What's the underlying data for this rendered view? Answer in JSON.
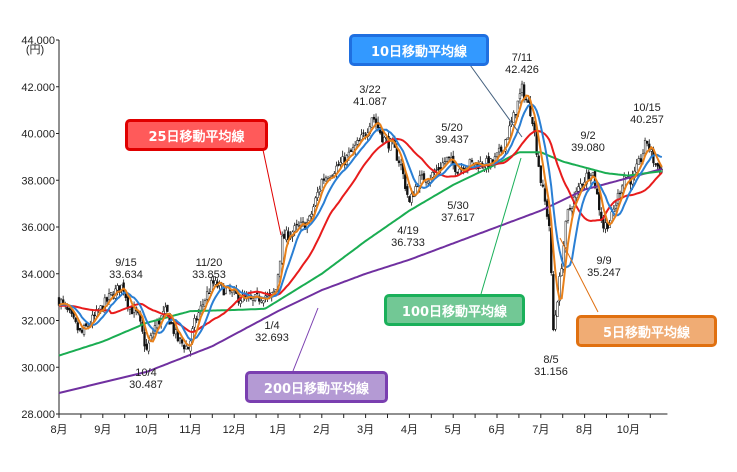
{
  "chart_data": {
    "type": "line",
    "subtype": "candlestick with moving averages",
    "yunit": "(円)",
    "ylim": [
      28000,
      44000
    ],
    "yticks": [
      {
        "value": 28000,
        "label": "28.000"
      },
      {
        "value": 30000,
        "label": "30.000"
      },
      {
        "value": 32000,
        "label": "32.000"
      },
      {
        "value": 34000,
        "label": "34.000"
      },
      {
        "value": 36000,
        "label": "36.000"
      },
      {
        "value": 38000,
        "label": "38.000"
      },
      {
        "value": 40000,
        "label": "40.000"
      },
      {
        "value": 42000,
        "label": "42.000"
      },
      {
        "value": 44000,
        "label": "44.000"
      }
    ],
    "xticks": [
      "8月",
      "9月",
      "10月",
      "11月",
      "12月",
      "1月",
      "2月",
      "3月",
      "4月",
      "5月",
      "6月",
      "7月",
      "8月",
      "10月"
    ],
    "xlim": [
      0,
      13.8
    ],
    "price_keypoints": [
      [
        0,
        32900
      ],
      [
        0.25,
        32200
      ],
      [
        0.5,
        31400
      ],
      [
        0.75,
        32000
      ],
      [
        1.0,
        32600
      ],
      [
        1.2,
        33100
      ],
      [
        1.46,
        33500
      ],
      [
        1.6,
        32600
      ],
      [
        1.8,
        32200
      ],
      [
        2.0,
        30700
      ],
      [
        2.2,
        31800
      ],
      [
        2.45,
        32400
      ],
      [
        2.7,
        31200
      ],
      [
        2.95,
        30800
      ],
      [
        3.1,
        31900
      ],
      [
        3.35,
        33000
      ],
      [
        3.5,
        33600
      ],
      [
        3.8,
        33300
      ],
      [
        4.1,
        33000
      ],
      [
        4.4,
        32800
      ],
      [
        4.7,
        33100
      ],
      [
        4.8,
        32900
      ],
      [
        4.95,
        33300
      ],
      [
        5.1,
        35500
      ],
      [
        5.4,
        35900
      ],
      [
        5.7,
        36200
      ],
      [
        6.0,
        38000
      ],
      [
        6.3,
        38500
      ],
      [
        6.55,
        38900
      ],
      [
        6.8,
        39500
      ],
      [
        7.0,
        40000
      ],
      [
        7.15,
        40800
      ],
      [
        7.4,
        39800
      ],
      [
        7.6,
        39500
      ],
      [
        7.8,
        38700
      ],
      [
        8.0,
        37000
      ],
      [
        8.2,
        38000
      ],
      [
        8.5,
        38200
      ],
      [
        8.86,
        38900
      ],
      [
        9.1,
        38500
      ],
      [
        9.3,
        38700
      ],
      [
        9.6,
        38700
      ],
      [
        9.9,
        38700
      ],
      [
        10.1,
        39300
      ],
      [
        10.35,
        40500
      ],
      [
        10.57,
        41900
      ],
      [
        10.8,
        40800
      ],
      [
        11.0,
        38000
      ],
      [
        11.2,
        36000
      ],
      [
        11.28,
        31500
      ],
      [
        11.45,
        34000
      ],
      [
        11.6,
        36500
      ],
      [
        11.9,
        37800
      ],
      [
        12.17,
        38500
      ],
      [
        12.42,
        36000
      ],
      [
        12.6,
        36300
      ],
      [
        12.9,
        38200
      ],
      [
        13.1,
        38000
      ],
      [
        13.3,
        39000
      ],
      [
        13.42,
        39700
      ],
      [
        13.6,
        38700
      ],
      [
        13.8,
        38400
      ]
    ],
    "ma100_keypoints": [
      [
        0,
        30500
      ],
      [
        1,
        31100
      ],
      [
        2,
        31900
      ],
      [
        3,
        32400
      ],
      [
        4,
        32450
      ],
      [
        4.7,
        32500
      ],
      [
        5.05,
        32900
      ],
      [
        6,
        34000
      ],
      [
        7,
        35400
      ],
      [
        8,
        36700
      ],
      [
        9,
        37800
      ],
      [
        10,
        38700
      ],
      [
        10.5,
        39200
      ],
      [
        11,
        39200
      ],
      [
        11.5,
        38800
      ],
      [
        12,
        38550
      ],
      [
        12.5,
        38300
      ],
      [
        13,
        38200
      ],
      [
        13.8,
        38400
      ]
    ],
    "ma200_keypoints": [
      [
        0,
        28900
      ],
      [
        2,
        29800
      ],
      [
        3.5,
        30900
      ],
      [
        5,
        32400
      ],
      [
        6,
        33300
      ],
      [
        7,
        34000
      ],
      [
        8,
        34600
      ],
      [
        9,
        35300
      ],
      [
        10,
        36000
      ],
      [
        11,
        36700
      ],
      [
        12,
        37600
      ],
      [
        13,
        38100
      ],
      [
        13.8,
        38500
      ]
    ],
    "series": [
      {
        "name": "5日移動平均線",
        "color": "#e8801a",
        "window": 5
      },
      {
        "name": "10日移動平均線",
        "color": "#2a7fd4",
        "window": 10
      },
      {
        "name": "25日移動平均線",
        "color": "#e81c1c",
        "window": 25
      },
      {
        "name": "100日移動平均線",
        "color": "#1aad52",
        "window": 100
      },
      {
        "name": "200日移動平均線",
        "color": "#7030a0",
        "window": 200
      }
    ],
    "legend_boxes": [
      {
        "label": "10日移動平均線",
        "fill": "#3399ff",
        "border": "#1f6fe0"
      },
      {
        "label": "25日移動平均線",
        "fill": "#ff5a5a",
        "border": "#e00000"
      },
      {
        "label": "100日移動平均線",
        "fill": "#72c895",
        "border": "#1ab05a"
      },
      {
        "label": "5日移動平均線",
        "fill": "#f0ac74",
        "border": "#e07010"
      },
      {
        "label": "200日移動平均線",
        "fill": "#b49ad4",
        "border": "#7a3fb0"
      }
    ],
    "annotations": [
      {
        "date": "9/15",
        "value": "33.634"
      },
      {
        "date": "10/4",
        "value": "30.487"
      },
      {
        "date": "11/20",
        "value": "33.853"
      },
      {
        "date": "1/4",
        "value": "32.693"
      },
      {
        "date": "3/22",
        "value": "41.087"
      },
      {
        "date": "4/19",
        "value": "36.733"
      },
      {
        "date": "5/20",
        "value": "39.437"
      },
      {
        "date": "5/30",
        "value": "37.617"
      },
      {
        "date": "7/11",
        "value": "42.426"
      },
      {
        "date": "8/5",
        "value": "31.156"
      },
      {
        "date": "9/2",
        "value": "39.080"
      },
      {
        "date": "9/9",
        "value": "35.247"
      },
      {
        "date": "10/15",
        "value": "40.257"
      }
    ]
  }
}
